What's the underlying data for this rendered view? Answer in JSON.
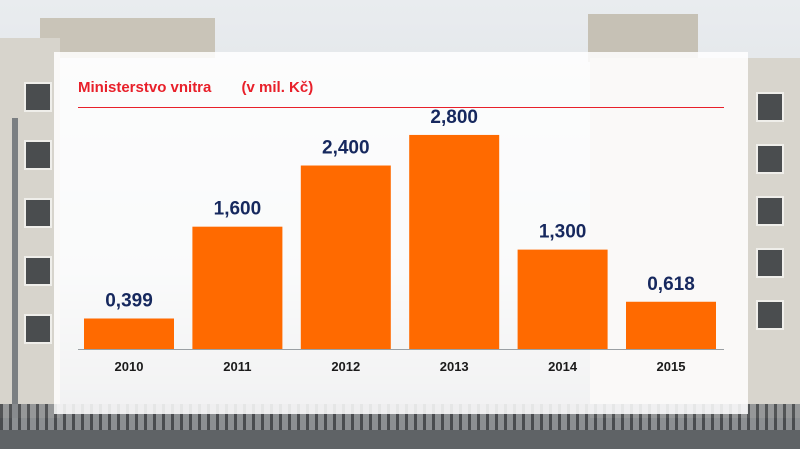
{
  "chart_data": {
    "type": "bar",
    "title": "Ministerstvo vnitra",
    "subtitle": "(v mil. Kč)",
    "categories": [
      "2010",
      "2011",
      "2012",
      "2013",
      "2014",
      "2015"
    ],
    "values": [
      0.399,
      1.6,
      2.4,
      2.8,
      1.3,
      0.618
    ],
    "value_labels": [
      "0,399",
      "1,600",
      "2,400",
      "2,800",
      "1,300",
      "0,618"
    ],
    "ylim": [
      0,
      3.1
    ],
    "grid": false,
    "legend": "none",
    "bar_color": "#ff6a00",
    "title_color": "#e8202a",
    "value_label_color": "#16285e"
  }
}
